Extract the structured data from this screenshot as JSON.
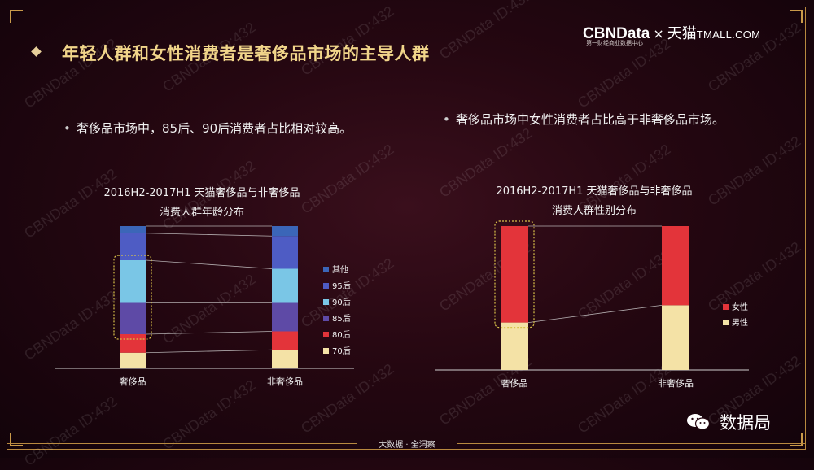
{
  "slide": {
    "title": "年轻人群和女性消费者是奢侈品市场的主导人群",
    "logo": {
      "brand": "CBNData",
      "separator": "×",
      "partner": "天猫",
      "partner_en": "TMALL.COM",
      "tagline": "第一财经商业数据中心"
    },
    "bullets": {
      "left": "奢侈品市场中，85后、90后消费者占比相对较高。",
      "right": "奢侈品市场中女性消费者占比高于非奢侈品市场。"
    },
    "bullet_symbol": "•",
    "footer": "大数据 · 全洞察",
    "wechat_account": "数据局",
    "watermark": "CBNData ID:432"
  },
  "colors": {
    "其他": "#3b66b8",
    "95后": "#4e5cc4",
    "90后": "#7ac6e6",
    "85后": "#5e4aa6",
    "80后": "#e3343a",
    "70后": "#f4e2a6",
    "女性": "#e3343a",
    "男性": "#f4e2a6",
    "highlight": "#d9c24a"
  },
  "chart_data": [
    {
      "type": "bar",
      "stacked": true,
      "title": "2016H2-2017H1 天猫奢侈品与非奢侈品",
      "subtitle": "消费人群年龄分布",
      "categories": [
        "奢侈品",
        "非奢侈品"
      ],
      "series": [
        {
          "name": "70后",
          "values": [
            11,
            13
          ]
        },
        {
          "name": "80后",
          "values": [
            13,
            13
          ]
        },
        {
          "name": "85后",
          "values": [
            22,
            20
          ]
        },
        {
          "name": "90后",
          "values": [
            30,
            24
          ]
        },
        {
          "name": "95后",
          "values": [
            19,
            23
          ]
        },
        {
          "name": "其他",
          "values": [
            5,
            7
          ]
        }
      ],
      "legend_position": "right",
      "ylim": [
        0,
        100
      ],
      "highlight": {
        "category": "奢侈品",
        "series": [
          "90后",
          "85后"
        ]
      }
    },
    {
      "type": "bar",
      "stacked": true,
      "title": "2016H2-2017H1 天猫奢侈品与非奢侈品",
      "subtitle": "消费人群性别分布",
      "categories": [
        "奢侈品",
        "非奢侈品"
      ],
      "series": [
        {
          "name": "男性",
          "values": [
            33,
            45
          ]
        },
        {
          "name": "女性",
          "values": [
            67,
            55
          ]
        }
      ],
      "legend_position": "right",
      "ylim": [
        0,
        100
      ],
      "highlight": {
        "category": "奢侈品",
        "series": [
          "女性"
        ]
      }
    }
  ]
}
